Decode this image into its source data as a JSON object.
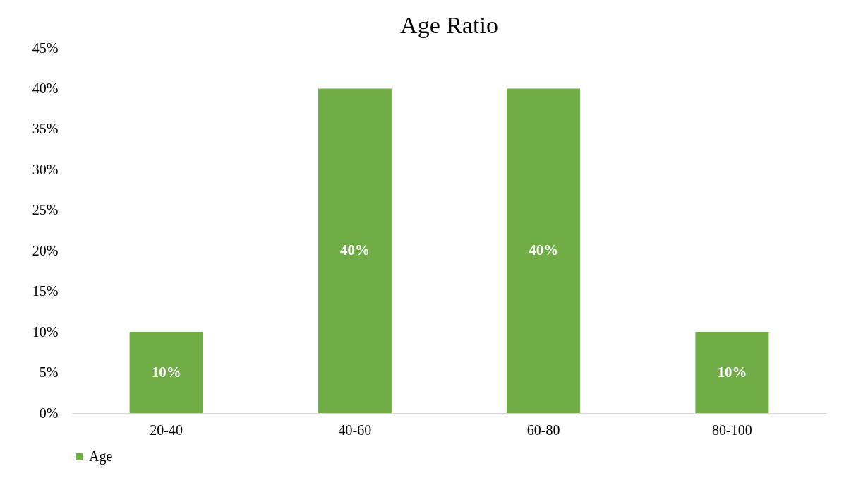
{
  "chart_data": {
    "type": "bar",
    "title": "Age Ratio",
    "categories": [
      "20-40",
      "40-60",
      "60-80",
      "80-100"
    ],
    "series": [
      {
        "name": "Age",
        "color": "#70ad47",
        "values": [
          10,
          40,
          40,
          10
        ]
      }
    ],
    "value_labels": [
      "10%",
      "40%",
      "40%",
      "10%"
    ],
    "ylim": [
      0,
      45
    ],
    "yticks": [
      {
        "value": 0,
        "label": "0%"
      },
      {
        "value": 5,
        "label": "5%"
      },
      {
        "value": 10,
        "label": "10%"
      },
      {
        "value": 15,
        "label": "15%"
      },
      {
        "value": 20,
        "label": "20%"
      },
      {
        "value": 25,
        "label": "25%"
      },
      {
        "value": 30,
        "label": "30%"
      },
      {
        "value": 35,
        "label": "35%"
      },
      {
        "value": 40,
        "label": "40%"
      },
      {
        "value": 45,
        "label": "45%"
      }
    ],
    "legend": "bottom",
    "grid": false
  }
}
